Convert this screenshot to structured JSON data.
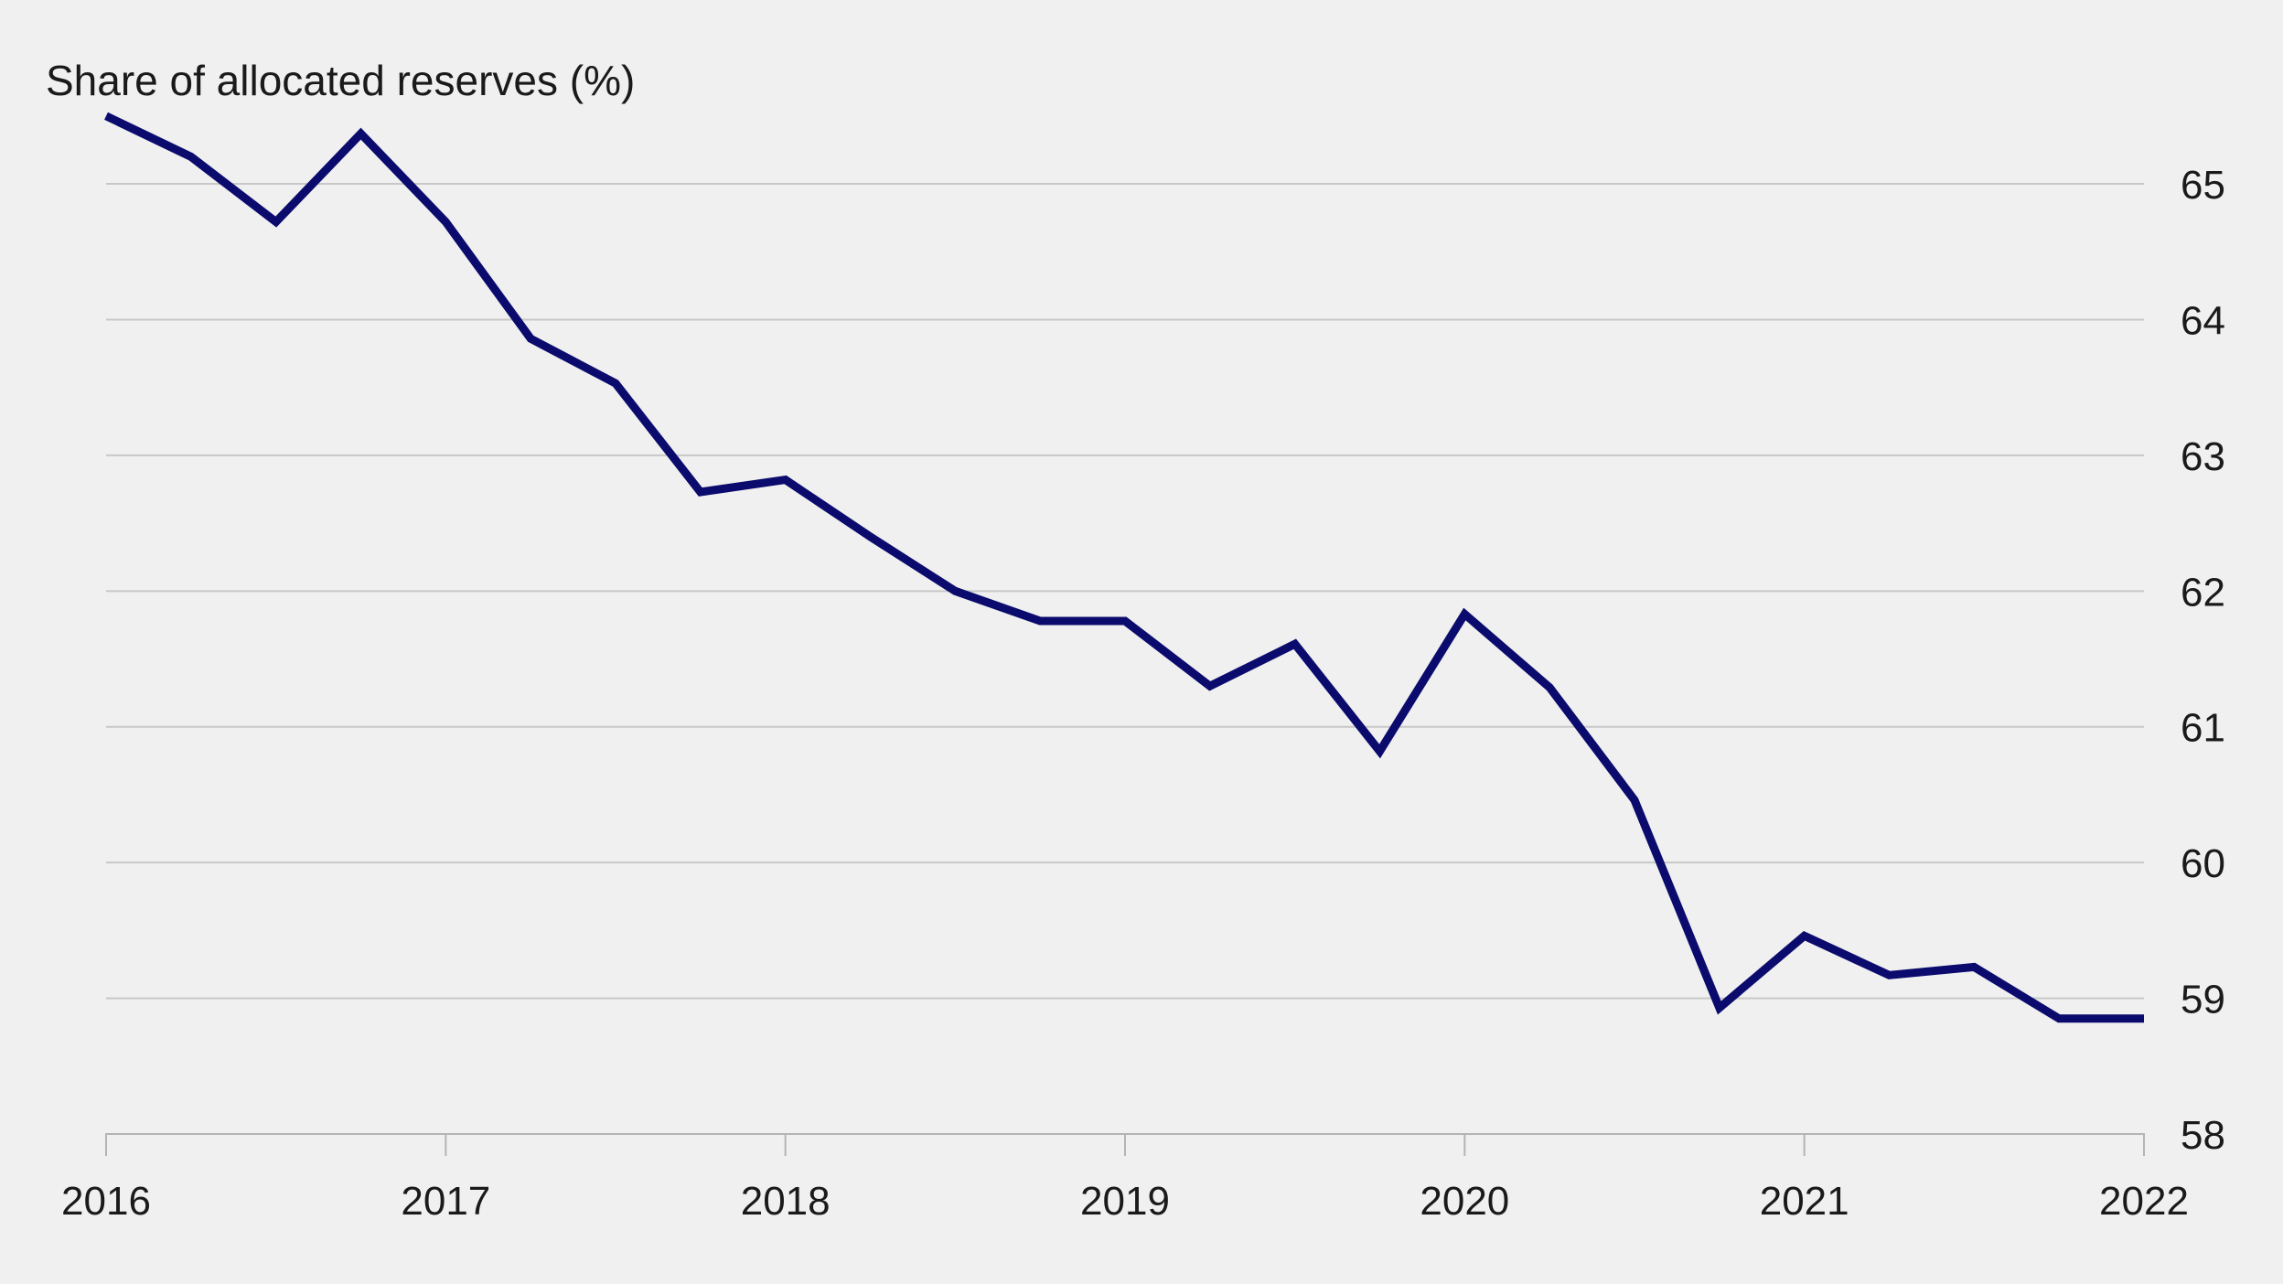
{
  "chart_data": {
    "type": "line",
    "title": "Share of allocated reserves (%)",
    "xlabel": "",
    "ylabel": "Share of allocated reserves (%)",
    "xlim": [
      2016,
      2022
    ],
    "ylim": [
      58,
      65.6
    ],
    "x_ticks": [
      "2016",
      "2017",
      "2018",
      "2019",
      "2020",
      "2021",
      "2022"
    ],
    "y_ticks": [
      "58",
      "59",
      "60",
      "61",
      "62",
      "63",
      "64",
      "65"
    ],
    "y_axis_side": "right",
    "grid": "horizontal",
    "line_color": "#0b0b6e",
    "series": [
      {
        "name": "Share of allocated reserves",
        "x": [
          2016.0,
          2016.25,
          2016.5,
          2016.75,
          2017.0,
          2017.25,
          2017.5,
          2017.75,
          2018.0,
          2018.25,
          2018.5,
          2018.75,
          2019.0,
          2019.25,
          2019.5,
          2019.75,
          2020.0,
          2020.25,
          2020.5,
          2020.75,
          2021.0,
          2021.25,
          2021.5,
          2021.75,
          2022.0
        ],
        "values": [
          65.5,
          65.2,
          64.72,
          65.37,
          64.72,
          63.86,
          63.53,
          62.73,
          62.82,
          62.4,
          62.0,
          61.78,
          61.78,
          61.3,
          61.61,
          60.82,
          61.83,
          61.29,
          60.46,
          58.93,
          59.46,
          59.17,
          59.23,
          58.85,
          58.85
        ]
      }
    ]
  }
}
